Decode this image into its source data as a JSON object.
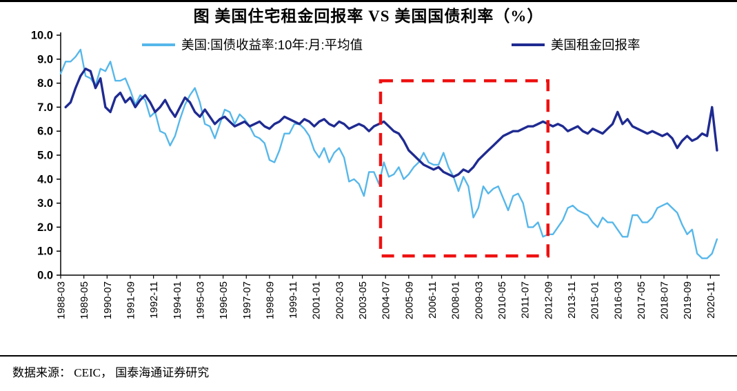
{
  "page": {
    "title": "图 美国住宅租金回报率 VS 美国国债利率（%）",
    "source": "数据来源：  CEIC，  国泰海通证券研究"
  },
  "colors": {
    "treasury": "#56B7EA",
    "rental": "#1F2B91",
    "highlight": "#EE1111",
    "axis": "#000000"
  },
  "chart_data": {
    "type": "line",
    "title": "图 美国住宅租金回报率 VS 美国国债利率（%）",
    "xlabel": "",
    "ylabel": "",
    "ylim": [
      0,
      10
    ],
    "grid": false,
    "legend_position": "top",
    "y_ticks": [
      "0.0",
      "1.0",
      "2.0",
      "3.0",
      "4.0",
      "5.0",
      "6.0",
      "7.0",
      "8.0",
      "9.0",
      "10.0"
    ],
    "x_tick_labels": [
      "1988-03",
      "1989-05",
      "1990-07",
      "1991-09",
      "1992-11",
      "1994-01",
      "1995-03",
      "1996-05",
      "1997-07",
      "1998-09",
      "1999-11",
      "2001-01",
      "2002-03",
      "2003-05",
      "2004-07",
      "2005-09",
      "2006-11",
      "2008-01",
      "2009-03",
      "2010-05",
      "2011-07",
      "2012-09",
      "2013-11",
      "2015-01",
      "2016-03",
      "2017-05",
      "2018-07",
      "2019-09",
      "2020-11"
    ],
    "highlight_box": {
      "x_start": "2004-04",
      "x_end": "2012-09",
      "y_min": 0.8,
      "y_max": 8.1
    },
    "x": [
      "1988-03",
      "1988-06",
      "1988-09",
      "1988-12",
      "1989-03",
      "1989-06",
      "1989-09",
      "1989-12",
      "1990-03",
      "1990-06",
      "1990-09",
      "1990-12",
      "1991-03",
      "1991-06",
      "1991-09",
      "1991-12",
      "1992-03",
      "1992-06",
      "1992-09",
      "1992-12",
      "1993-03",
      "1993-06",
      "1993-09",
      "1993-12",
      "1994-03",
      "1994-06",
      "1994-09",
      "1994-12",
      "1995-03",
      "1995-06",
      "1995-09",
      "1995-12",
      "1996-03",
      "1996-06",
      "1996-09",
      "1996-12",
      "1997-03",
      "1997-06",
      "1997-09",
      "1997-12",
      "1998-03",
      "1998-06",
      "1998-09",
      "1998-12",
      "1999-03",
      "1999-06",
      "1999-09",
      "1999-12",
      "2000-03",
      "2000-06",
      "2000-09",
      "2000-12",
      "2001-03",
      "2001-06",
      "2001-09",
      "2001-12",
      "2002-03",
      "2002-06",
      "2002-09",
      "2002-12",
      "2003-03",
      "2003-06",
      "2003-09",
      "2003-12",
      "2004-03",
      "2004-06",
      "2004-09",
      "2004-12",
      "2005-03",
      "2005-06",
      "2005-09",
      "2005-12",
      "2006-03",
      "2006-06",
      "2006-09",
      "2006-12",
      "2007-03",
      "2007-06",
      "2007-09",
      "2007-12",
      "2008-03",
      "2008-06",
      "2008-09",
      "2008-12",
      "2009-03",
      "2009-06",
      "2009-09",
      "2009-12",
      "2010-03",
      "2010-06",
      "2010-09",
      "2010-12",
      "2011-03",
      "2011-06",
      "2011-09",
      "2011-12",
      "2012-03",
      "2012-06",
      "2012-09",
      "2012-12",
      "2013-03",
      "2013-06",
      "2013-09",
      "2013-12",
      "2014-03",
      "2014-06",
      "2014-09",
      "2014-12",
      "2015-03",
      "2015-06",
      "2015-09",
      "2015-12",
      "2016-03",
      "2016-06",
      "2016-09",
      "2016-12",
      "2017-03",
      "2017-06",
      "2017-09",
      "2017-12",
      "2018-03",
      "2018-06",
      "2018-09",
      "2018-12",
      "2019-03",
      "2019-06",
      "2019-09",
      "2019-12",
      "2020-03",
      "2020-06",
      "2020-09",
      "2020-12",
      "2021-03"
    ],
    "series": [
      {
        "name": "美国:国债收益率:10年:月:平均值",
        "data_name": "treasury-yield-line",
        "color_key": "treasury",
        "width": 2.4,
        "values": [
          8.4,
          8.9,
          8.9,
          9.1,
          9.4,
          8.3,
          8.2,
          7.9,
          8.6,
          8.5,
          8.9,
          8.1,
          8.1,
          8.2,
          7.7,
          7.1,
          7.5,
          7.3,
          6.6,
          6.8,
          6.0,
          5.9,
          5.4,
          5.8,
          6.5,
          7.1,
          7.5,
          7.8,
          7.2,
          6.3,
          6.2,
          5.7,
          6.3,
          6.9,
          6.8,
          6.3,
          6.7,
          6.5,
          6.2,
          5.8,
          5.7,
          5.5,
          4.8,
          4.7,
          5.2,
          5.9,
          5.9,
          6.3,
          6.3,
          6.1,
          5.8,
          5.2,
          4.9,
          5.3,
          4.7,
          5.1,
          5.3,
          4.9,
          3.9,
          4.0,
          3.8,
          3.3,
          4.3,
          4.3,
          3.8,
          4.7,
          4.1,
          4.2,
          4.5,
          4.0,
          4.2,
          4.5,
          4.7,
          5.1,
          4.7,
          4.6,
          4.6,
          5.1,
          4.5,
          4.1,
          3.5,
          4.1,
          3.7,
          2.4,
          2.8,
          3.7,
          3.4,
          3.6,
          3.7,
          3.2,
          2.7,
          3.3,
          3.4,
          3.0,
          2.0,
          2.0,
          2.2,
          1.6,
          1.7,
          1.7,
          2.0,
          2.3,
          2.8,
          2.9,
          2.7,
          2.6,
          2.5,
          2.2,
          2.0,
          2.4,
          2.2,
          2.2,
          1.9,
          1.6,
          1.6,
          2.5,
          2.5,
          2.2,
          2.2,
          2.4,
          2.8,
          2.9,
          3.0,
          2.8,
          2.6,
          2.1,
          1.7,
          1.9,
          0.9,
          0.7,
          0.7,
          0.9,
          1.5
        ]
      },
      {
        "name": "美国租金回报率",
        "data_name": "rental-return-line",
        "color_key": "rental",
        "width": 3.4,
        "values": [
          null,
          7.0,
          7.2,
          7.8,
          8.3,
          8.6,
          8.5,
          7.8,
          8.2,
          7.0,
          6.8,
          7.4,
          7.6,
          7.2,
          7.4,
          7.0,
          7.3,
          7.5,
          7.2,
          6.8,
          7.0,
          7.3,
          6.9,
          6.6,
          7.0,
          7.4,
          7.2,
          6.8,
          6.6,
          6.9,
          6.6,
          6.3,
          6.5,
          6.6,
          6.4,
          6.2,
          6.3,
          6.4,
          6.2,
          6.3,
          6.4,
          6.2,
          6.1,
          6.3,
          6.4,
          6.6,
          6.5,
          6.4,
          6.3,
          6.5,
          6.4,
          6.2,
          6.4,
          6.5,
          6.3,
          6.2,
          6.4,
          6.3,
          6.1,
          6.2,
          6.3,
          6.2,
          6.0,
          6.2,
          6.3,
          6.4,
          6.2,
          6.0,
          5.9,
          5.6,
          5.2,
          5.0,
          4.8,
          4.6,
          4.5,
          4.4,
          4.5,
          4.3,
          4.2,
          4.1,
          4.2,
          4.4,
          4.3,
          4.5,
          4.8,
          5.0,
          5.2,
          5.4,
          5.6,
          5.8,
          5.9,
          6.0,
          6.0,
          6.1,
          6.2,
          6.2,
          6.3,
          6.4,
          6.3,
          6.2,
          6.3,
          6.2,
          6.0,
          6.1,
          6.2,
          6.0,
          5.9,
          6.1,
          6.0,
          5.9,
          6.1,
          6.3,
          6.8,
          6.3,
          6.5,
          6.2,
          6.1,
          6.0,
          5.9,
          6.0,
          5.9,
          5.8,
          5.9,
          5.7,
          5.3,
          5.6,
          5.8,
          5.6,
          5.7,
          5.9,
          5.8,
          7.0,
          5.2
        ]
      }
    ]
  }
}
